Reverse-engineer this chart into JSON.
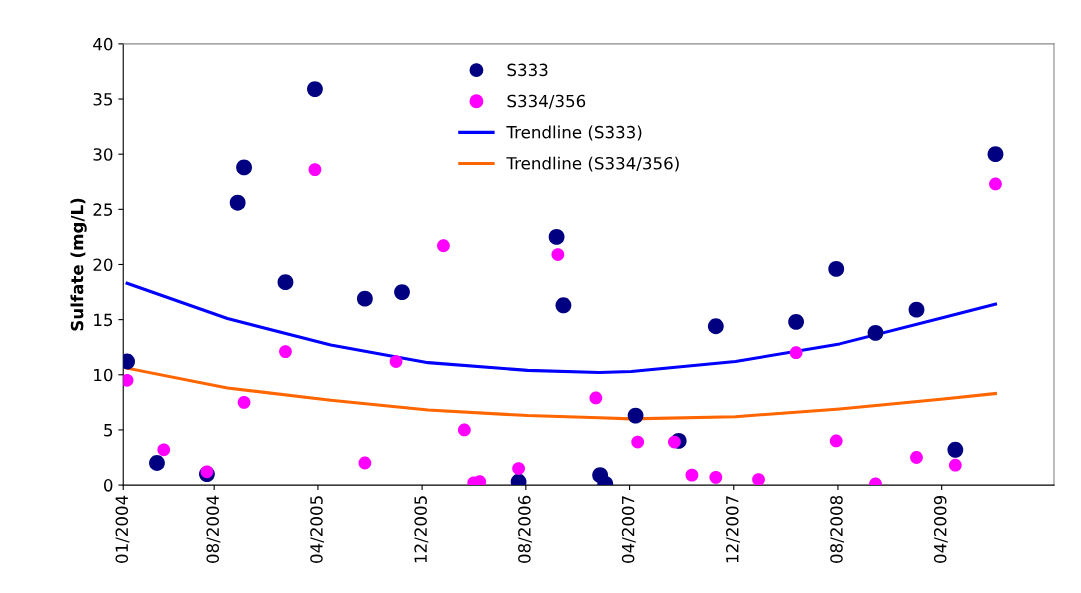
{
  "chart_data": {
    "type": "scatter",
    "ylabel": "Sulfate (mg/L)",
    "xlim": [
      "2004-01-01",
      "2009-12-20"
    ],
    "ylim": [
      0,
      40
    ],
    "yticks": [
      0,
      5,
      10,
      15,
      20,
      25,
      30,
      35,
      40
    ],
    "xticks": [
      {
        "value": "2004-01-01",
        "label": "01/2004"
      },
      {
        "value": "2004-08-01",
        "label": "08/2004"
      },
      {
        "value": "2005-04-01",
        "label": "04/2005"
      },
      {
        "value": "2005-12-01",
        "label": "12/2005"
      },
      {
        "value": "2006-08-01",
        "label": "08/2006"
      },
      {
        "value": "2007-04-01",
        "label": "04/2007"
      },
      {
        "value": "2007-12-01",
        "label": "12/2007"
      },
      {
        "value": "2008-08-01",
        "label": "08/2008"
      },
      {
        "value": "2009-04-01",
        "label": "04/2009"
      }
    ],
    "grid": false,
    "legend": "top",
    "series": [
      {
        "name": "S333",
        "marker": "circle",
        "color": "#000080",
        "x": [
          "2004-01-10",
          "2004-03-20",
          "2004-07-15",
          "2004-09-25",
          "2004-10-10",
          "2005-01-15",
          "2005-03-25",
          "2005-07-20",
          "2005-10-15",
          "2006-07-15",
          "2006-10-12",
          "2006-10-28",
          "2007-01-22",
          "2007-02-03",
          "2007-04-15",
          "2007-07-25",
          "2007-10-20",
          "2008-04-25",
          "2008-07-28",
          "2008-10-28",
          "2009-02-01",
          "2009-05-03",
          "2009-08-05"
        ],
        "values": [
          11.2,
          2.0,
          1.0,
          25.6,
          28.8,
          18.4,
          35.9,
          16.9,
          17.5,
          0.3,
          22.5,
          16.3,
          0.9,
          0.1,
          6.3,
          4.0,
          14.4,
          14.8,
          19.6,
          13.8,
          15.9,
          3.2,
          30.0
        ]
      },
      {
        "name": "S334/356",
        "marker": "circle",
        "color": "#ff00ff",
        "x": [
          "2004-01-10",
          "2004-04-05",
          "2004-07-15",
          "2004-10-10",
          "2005-01-15",
          "2005-03-25",
          "2005-07-20",
          "2005-10-01",
          "2006-01-20",
          "2006-03-10",
          "2006-04-01",
          "2006-04-15",
          "2006-07-15",
          "2006-10-15",
          "2007-01-12",
          "2007-04-20",
          "2007-07-15",
          "2007-08-25",
          "2007-10-20",
          "2008-01-28",
          "2008-04-25",
          "2008-07-28",
          "2008-10-28",
          "2009-02-01",
          "2009-05-03",
          "2009-08-05"
        ],
        "values": [
          9.5,
          3.2,
          1.2,
          7.5,
          12.1,
          28.6,
          2.0,
          11.2,
          21.7,
          5.0,
          0.2,
          0.3,
          1.5,
          20.9,
          7.9,
          3.9,
          3.9,
          0.9,
          0.7,
          0.5,
          12.0,
          4.0,
          0.1,
          2.5,
          1.8,
          27.3
        ]
      },
      {
        "name": "Trendline (S333)",
        "type": "line",
        "color": "#0000ff",
        "x": [
          "2004-01-10",
          "2004-09-01",
          "2005-05-01",
          "2005-12-15",
          "2006-08-05",
          "2007-01-20",
          "2007-04-05",
          "2007-12-05",
          "2008-08-05",
          "2009-04-05",
          "2009-08-05"
        ],
        "values": [
          18.3,
          15.1,
          12.7,
          11.1,
          10.4,
          10.2,
          10.3,
          11.2,
          12.8,
          15.2,
          16.4
        ]
      },
      {
        "name": "Trendline (S334/356)",
        "type": "line",
        "color": "#ff6600",
        "x": [
          "2004-01-10",
          "2004-09-01",
          "2005-05-01",
          "2005-12-15",
          "2006-08-05",
          "2007-01-20",
          "2007-04-05",
          "2007-12-05",
          "2008-08-05",
          "2009-04-05",
          "2009-08-05"
        ],
        "values": [
          10.6,
          8.8,
          7.7,
          6.8,
          6.3,
          6.1,
          6.0,
          6.2,
          6.9,
          7.8,
          8.3
        ]
      }
    ]
  }
}
